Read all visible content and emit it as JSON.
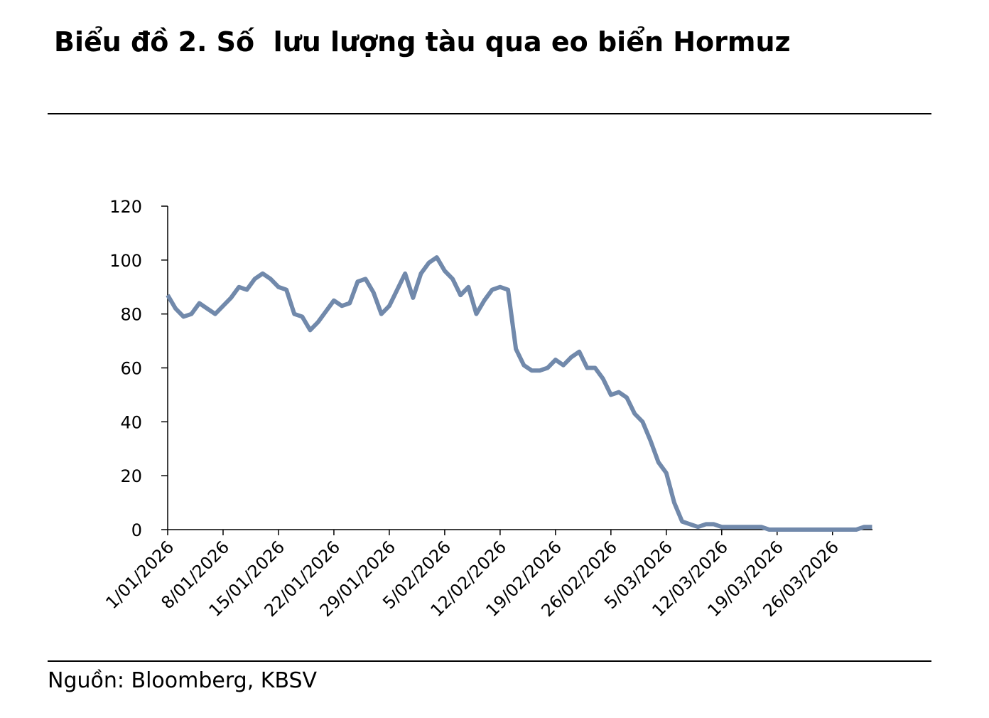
{
  "chart_data": {
    "type": "line",
    "title": "Biểu đồ 2. Số  lưu lượng tàu qua eo biển Hormuz",
    "source": "Nguồn: Bloomberg, KBSV",
    "categories": [
      "1/01/2026",
      null,
      null,
      null,
      null,
      null,
      null,
      "8/01/2026",
      null,
      null,
      null,
      null,
      null,
      null,
      "15/01/2026",
      null,
      null,
      null,
      null,
      null,
      null,
      "22/01/2026",
      null,
      null,
      null,
      null,
      null,
      null,
      "29/01/2026",
      null,
      null,
      null,
      null,
      null,
      null,
      "5/02/2026",
      null,
      null,
      null,
      null,
      null,
      null,
      "12/02/2026",
      null,
      null,
      null,
      null,
      null,
      null,
      "19/02/2026",
      null,
      null,
      null,
      null,
      null,
      null,
      "26/02/2026",
      null,
      null,
      null,
      null,
      null,
      null,
      "5/03/2026",
      null,
      null,
      null,
      null,
      null,
      null,
      "12/03/2026",
      null,
      null,
      null,
      null,
      null,
      null,
      "19/03/2026",
      null,
      null,
      null,
      null,
      null,
      null,
      "26/03/2026",
      null,
      null,
      null,
      null,
      null
    ],
    "series": [
      {
        "color": "#7189ab",
        "values": [
          87,
          82,
          79,
          80,
          84,
          82,
          80,
          83,
          86,
          90,
          89,
          93,
          95,
          93,
          90,
          89,
          80,
          79,
          74,
          77,
          81,
          85,
          83,
          84,
          92,
          93,
          88,
          80,
          83,
          89,
          95,
          86,
          95,
          99,
          101,
          96,
          93,
          87,
          90,
          80,
          85,
          89,
          90,
          89,
          67,
          61,
          59,
          59,
          60,
          63,
          61,
          64,
          66,
          60,
          60,
          56,
          50,
          51,
          49,
          43,
          40,
          33,
          25,
          21,
          10,
          3,
          2,
          1,
          2,
          2,
          1,
          1,
          1,
          1,
          1,
          1,
          0,
          0,
          0,
          0,
          0,
          0,
          0,
          0,
          0,
          0,
          0,
          0,
          1,
          1
        ]
      }
    ],
    "ylim": [
      0,
      120
    ],
    "yticks": [
      0,
      20,
      40,
      60,
      80,
      100,
      120
    ]
  }
}
